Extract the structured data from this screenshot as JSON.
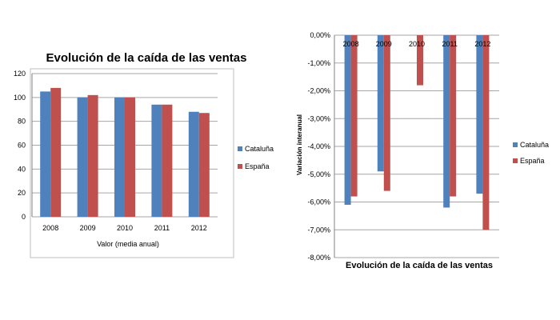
{
  "chart_data": [
    {
      "type": "bar",
      "title": "Evolución de la caída de las ventas",
      "xlabel": "Valor (media anual)",
      "ylabel": "",
      "categories": [
        "2008",
        "2009",
        "2010",
        "2011",
        "2012"
      ],
      "series": [
        {
          "name": "Cataluña",
          "color": "#4f81bd",
          "values": [
            105,
            100,
            100,
            94,
            88
          ]
        },
        {
          "name": "España",
          "color": "#c0504d",
          "values": [
            108,
            102,
            100,
            94,
            87
          ]
        }
      ],
      "ylim": [
        0,
        120
      ],
      "yticks": [
        "0",
        "20",
        "40",
        "60",
        "80",
        "100",
        "120"
      ],
      "grid": true,
      "legend": "right"
    },
    {
      "type": "bar",
      "title": "Evolución de la caída de las ventas",
      "xlabel": "",
      "ylabel": "Variación interanual",
      "categories": [
        "2008",
        "2009",
        "2010",
        "2011",
        "2012"
      ],
      "series": [
        {
          "name": "Cataluña",
          "color": "#4f81bd",
          "values": [
            -6.1,
            -4.9,
            0.0,
            -6.2,
            -5.7
          ]
        },
        {
          "name": "España",
          "color": "#c0504d",
          "values": [
            -5.8,
            -5.6,
            -1.8,
            -5.8,
            -7.0
          ]
        }
      ],
      "ylim": [
        -8,
        0
      ],
      "yticks": [
        "0,00%",
        "-1,00%",
        "-2,00%",
        "-3,00%",
        "-4,00%",
        "-5,00%",
        "-6,00%",
        "-7,00%",
        "-8,00%"
      ],
      "grid": true,
      "legend": "right",
      "category_labels_position": "top"
    }
  ]
}
